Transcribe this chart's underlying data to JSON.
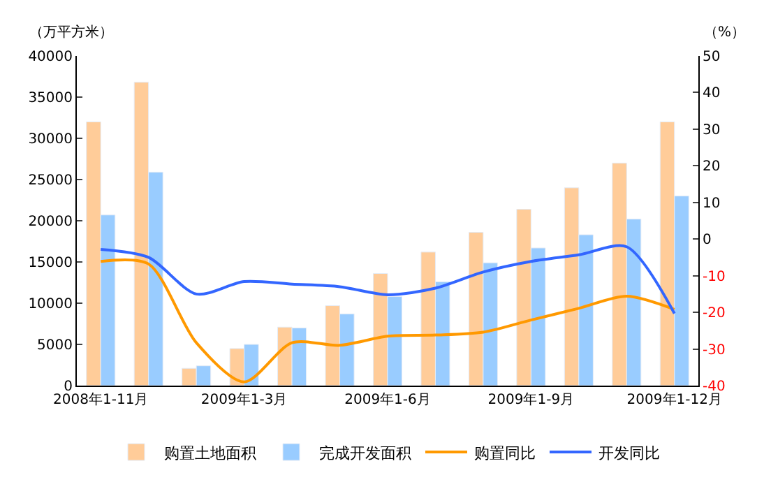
{
  "chart_data": {
    "type": "bar",
    "ylabel": "（万平方米）",
    "y2label": "（%）",
    "categories": [
      "2008年1-11月",
      null,
      null,
      "2009年1-3月",
      null,
      null,
      "2009年1-6月",
      null,
      null,
      "2009年1-9月",
      null,
      null,
      "2009年1-12月"
    ],
    "series": [
      {
        "name": "购置土地面积",
        "color": "#ffcc99",
        "values": [
          32000,
          36800,
          2100,
          4500,
          7100,
          9700,
          13600,
          16200,
          18600,
          21400,
          24000,
          27000,
          32000
        ]
      },
      {
        "name": "完成开发面积",
        "color": "#99ccff",
        "values": [
          20700,
          25900,
          2400,
          5000,
          7000,
          8700,
          10800,
          12600,
          14900,
          16700,
          18300,
          20200,
          23000
        ]
      },
      {
        "name": "购置同比",
        "type": "line",
        "axis": "y2",
        "color": "#ff9900",
        "values": [
          -6.1,
          -6.8,
          -28.3,
          -39,
          -28.3,
          -29,
          -26.5,
          -26.2,
          -25.4,
          -22.1,
          -18.9,
          -15.6,
          -19.2
        ]
      },
      {
        "name": "开发同比",
        "type": "line",
        "axis": "y2",
        "color": "#3366ff",
        "values": [
          -2.8,
          -5,
          -15,
          -11.6,
          -12.3,
          -13,
          -15.2,
          -13.4,
          -9,
          -6.1,
          -4.3,
          -2.1,
          -20.3
        ]
      }
    ],
    "ylim": [
      0,
      40000
    ],
    "yticks": [
      0,
      5000,
      10000,
      15000,
      20000,
      25000,
      30000,
      35000,
      40000
    ],
    "y2lim": [
      -40,
      50
    ],
    "y2ticks": [
      -40,
      -30,
      -20,
      -10,
      0,
      10,
      20,
      30,
      40,
      50
    ],
    "legend": "bottom",
    "marker": "none",
    "line_style": "solid"
  }
}
